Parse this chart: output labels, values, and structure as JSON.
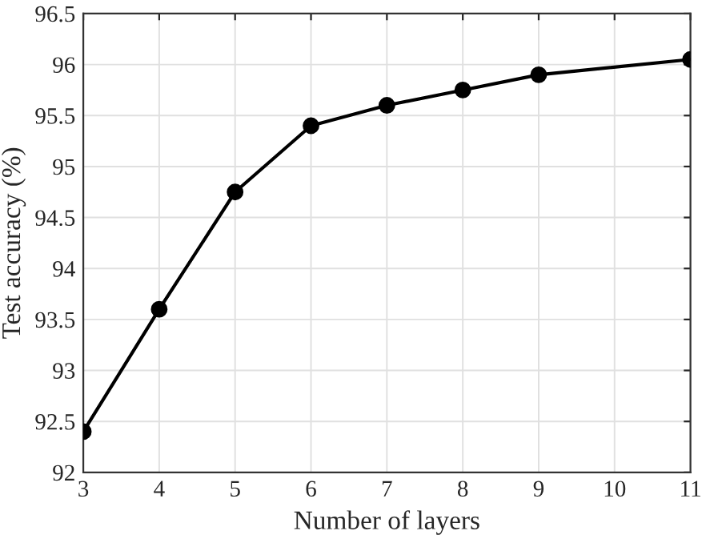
{
  "chart_data": {
    "type": "line",
    "xlabel": "Number of layers",
    "ylabel": "Test accuracy (%)",
    "x": [
      3,
      4,
      5,
      6,
      7,
      8,
      9,
      11
    ],
    "series": [
      {
        "color": "#000000",
        "values": [
          92.4,
          93.6,
          94.75,
          95.4,
          95.6,
          95.75,
          95.9,
          96.05
        ]
      }
    ],
    "xlim": [
      3,
      11
    ],
    "xticks": [
      3,
      4,
      5,
      6,
      7,
      8,
      9,
      10,
      11
    ],
    "ylim": [
      92,
      96.5
    ],
    "yticks": [
      92,
      92.5,
      93,
      93.5,
      94,
      94.5,
      95,
      95.5,
      96,
      96.5
    ],
    "grid": true,
    "marker": "circle",
    "line_style": "solid"
  }
}
